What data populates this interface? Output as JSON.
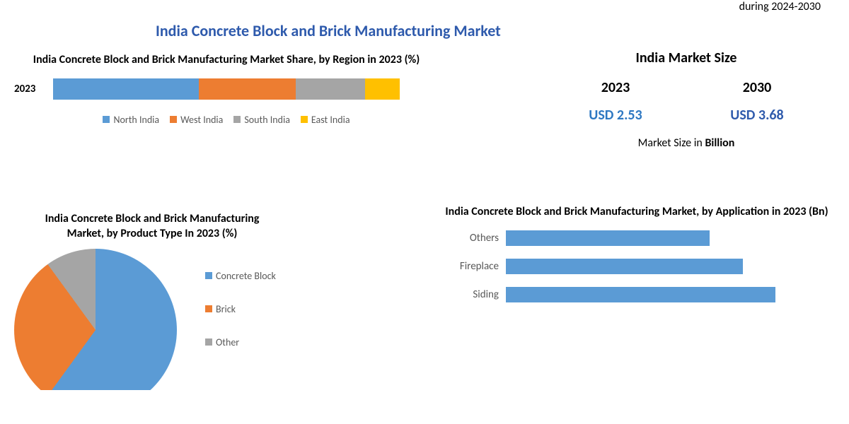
{
  "colors": {
    "title_blue": "#2e5aac",
    "value_blue": "#2e78c2",
    "series_blue": "#5b9bd5",
    "series_orange": "#ed7d31",
    "series_gray": "#a5a5a5",
    "series_yellow": "#ffc000",
    "text_gray": "#595959"
  },
  "top_note": "during 2024-2030",
  "main_title": "India Concrete Block and Brick Manufacturing Market",
  "stacked": {
    "title": "India Concrete Block and Brick Manufacturing Market Share, by Region in 2023 (%)",
    "year_label": "2023",
    "segments": [
      {
        "name": "North India",
        "value": 42,
        "color": "#5b9bd5"
      },
      {
        "name": "West India",
        "value": 28,
        "color": "#ed7d31"
      },
      {
        "name": "South India",
        "value": 20,
        "color": "#a5a5a5"
      },
      {
        "name": "East India",
        "value": 10,
        "color": "#ffc000"
      }
    ]
  },
  "market_size": {
    "title": "India Market Size",
    "cols": [
      {
        "year": "2023",
        "value": "USD 2.53",
        "color": "#2e78c2"
      },
      {
        "year": "2030",
        "value": "USD 3.68",
        "color": "#2e5aac"
      }
    ],
    "unit_prefix": "Market Size in ",
    "unit_bold": "Billion"
  },
  "pie": {
    "title": "India Concrete Block and Brick Manufacturing Market, by Product Type In 2023 (%)",
    "slices": [
      {
        "name": "Concrete Block",
        "value": 60,
        "color": "#5b9bd5"
      },
      {
        "name": "Brick",
        "value": 30,
        "color": "#ed7d31"
      },
      {
        "name": "Other",
        "value": 10,
        "color": "#a5a5a5"
      }
    ]
  },
  "hbar": {
    "title": "India Concrete Block and Brick Manufacturing Market, by Application in 2023 (Bn)",
    "color": "#5b9bd5",
    "max": 100,
    "bars": [
      {
        "label": "Others",
        "value": 62
      },
      {
        "label": "Fireplace",
        "value": 72
      },
      {
        "label": "Siding",
        "value": 82
      }
    ]
  }
}
